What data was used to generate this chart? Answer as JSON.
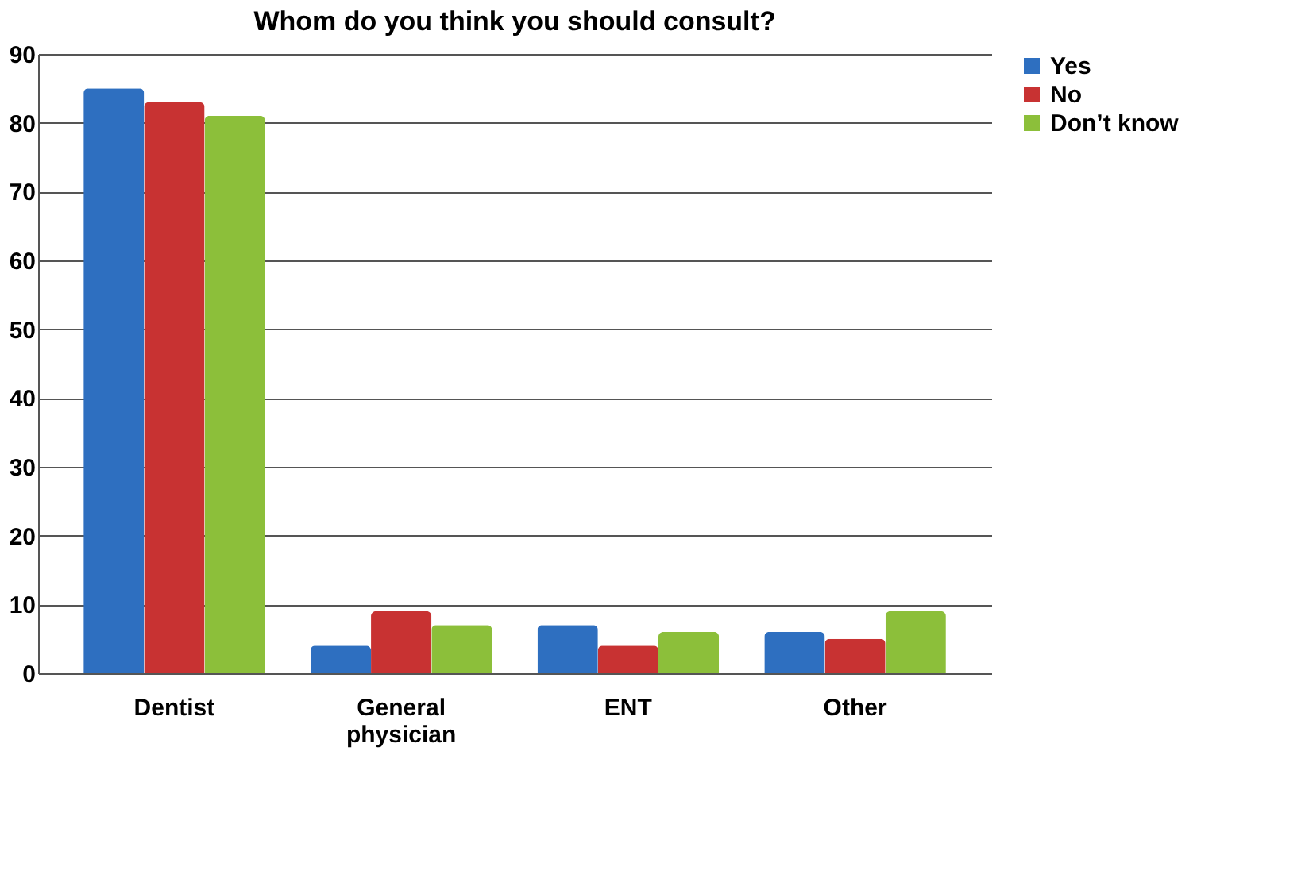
{
  "chart_data": {
    "type": "bar",
    "title": "Whom do you think you should consult?",
    "categories": [
      "Dentist",
      "General physician",
      "ENT",
      "Other"
    ],
    "series": [
      {
        "name": "Yes",
        "color": "#2e6fc0",
        "values": [
          85,
          4,
          7,
          6
        ]
      },
      {
        "name": "No",
        "color": "#c83232",
        "values": [
          83,
          9,
          4,
          5
        ]
      },
      {
        "name": "Don’t know",
        "color": "#8cbf3a",
        "values": [
          81,
          7,
          6,
          9
        ]
      }
    ],
    "ylim": [
      0,
      90
    ],
    "yticks": [
      0,
      10,
      20,
      30,
      40,
      50,
      60,
      70,
      80,
      90
    ],
    "grid": "y",
    "legend": "right"
  }
}
